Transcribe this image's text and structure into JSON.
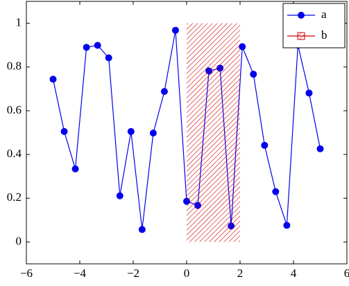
{
  "chart_data": {
    "type": "line",
    "xlim": [
      -6,
      6
    ],
    "ylim": [
      -0.1,
      1.1
    ],
    "xticks": [
      {
        "value": -6,
        "label": "−6"
      },
      {
        "value": -4,
        "label": "−4"
      },
      {
        "value": -2,
        "label": "−2"
      },
      0,
      2,
      4,
      6
    ],
    "yticks": [
      0,
      0.2,
      0.4,
      0.6,
      0.8,
      1
    ],
    "legend": "top-right",
    "series": [
      {
        "name": "a",
        "color": "#0000ee",
        "marker": "circle",
        "x": [
          -5,
          -4.583,
          -4.167,
          -3.75,
          -3.333,
          -2.917,
          -2.5,
          -2.083,
          -1.667,
          -1.25,
          -0.833,
          -0.417,
          0,
          0.417,
          0.833,
          1.25,
          1.667,
          2.083,
          2.5,
          2.917,
          3.333,
          3.75,
          4.167,
          4.583,
          5
        ],
        "values": [
          0.744,
          0.505,
          0.334,
          0.89,
          0.899,
          0.842,
          0.211,
          0.505,
          0.057,
          0.498,
          0.688,
          0.968,
          0.186,
          0.167,
          0.782,
          0.795,
          0.073,
          0.893,
          0.767,
          0.442,
          0.23,
          0.076,
          0.9,
          0.681,
          0.426
        ]
      },
      {
        "name": "b",
        "color": "#cc0000",
        "marker": "hatched-area",
        "x": [
          0,
          2
        ],
        "values": [
          1,
          1
        ]
      }
    ]
  }
}
